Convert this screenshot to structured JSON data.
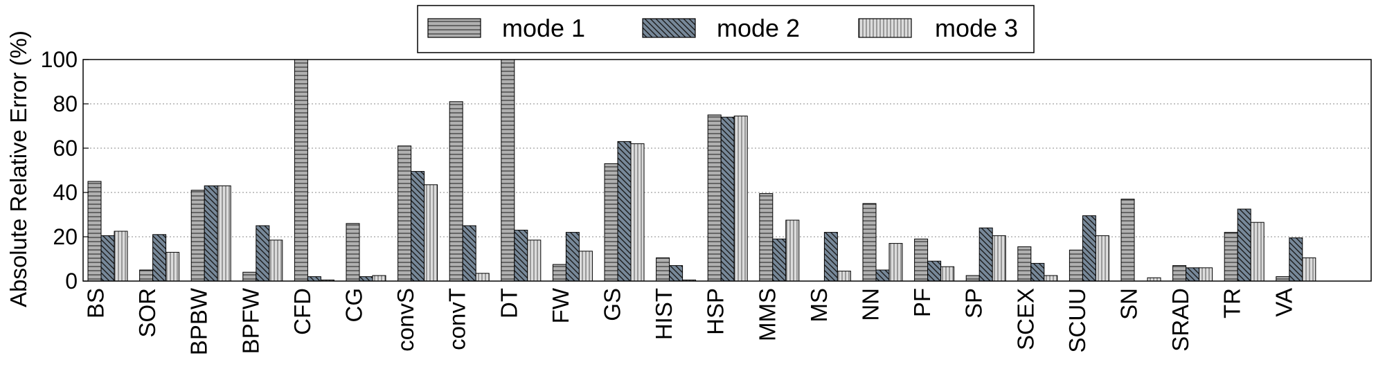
{
  "chart_data": {
    "type": "bar",
    "title": "",
    "xlabel": "",
    "ylabel": "Absolute Relative Error (%)",
    "ylim": [
      0,
      100
    ],
    "yticks": [
      0,
      20,
      40,
      60,
      80,
      100
    ],
    "grid": true,
    "legend_position": "top-center",
    "categories": [
      "BS",
      "SOR",
      "BPBW",
      "BPFW",
      "CFD",
      "CG",
      "convS",
      "convT",
      "DT",
      "FW",
      "GS",
      "HIST",
      "HSP",
      "MMS",
      "MS",
      "NN",
      "PF",
      "SP",
      "SCEX",
      "SCUU",
      "SN",
      "SRAD",
      "TR",
      "VA"
    ],
    "series": [
      {
        "name": "mode 1",
        "color": "#b0b0b0",
        "pattern": "horizontal-lines",
        "values": [
          45,
          5,
          41,
          4,
          100,
          26,
          61,
          81,
          100,
          7.5,
          53,
          10.5,
          75,
          39.5,
          0,
          35,
          19,
          2.5,
          15.5,
          14,
          37,
          7,
          22,
          2
        ]
      },
      {
        "name": "mode 2",
        "color": "#778899",
        "pattern": "diagonal-lines",
        "values": [
          20.5,
          21,
          43,
          25,
          2,
          2,
          49.5,
          25,
          23,
          22,
          63,
          7,
          74,
          19,
          22,
          5,
          9,
          24,
          8,
          29.5,
          0,
          6,
          32.5,
          19.5
        ]
      },
      {
        "name": "mode 3",
        "color": "#dcdcdc",
        "pattern": "vertical-lines",
        "values": [
          22.5,
          13,
          43,
          18.5,
          0.5,
          2.5,
          43.5,
          3.5,
          18.5,
          13.5,
          62,
          0.5,
          74.5,
          27.5,
          4.5,
          17,
          6.5,
          20.5,
          2.5,
          20.5,
          1.5,
          6,
          26.5,
          10.5
        ]
      }
    ]
  }
}
